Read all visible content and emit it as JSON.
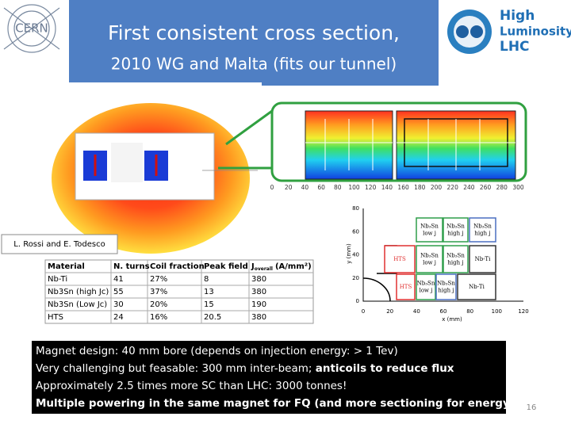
{
  "header": {
    "title": [
      "First consistent cross section,",
      "2010 WG and Malta (fits our tunnel)"
    ],
    "cern_logo": "CERN",
    "hl_logo": [
      "High",
      "Luminosity",
      "LHC"
    ]
  },
  "field_map": {
    "axis_ticks": [
      "0",
      "20",
      "40",
      "60",
      "80",
      "100",
      "120",
      "140",
      "160",
      "180",
      "200",
      "220",
      "240",
      "260",
      "280",
      "300"
    ]
  },
  "credit": "L. Rossi and E. Todesco",
  "table": {
    "header": [
      "Material",
      "N. turns",
      "Coil fraction",
      "Peak field",
      {
        "symbol": "J",
        "subscript": "overall",
        "unit": "(A/mm²)"
      }
    ],
    "rows": [
      [
        "Nb-Ti",
        "41",
        "27%",
        "8",
        "380"
      ],
      [
        "Nb3Sn (high Jc)",
        "55",
        "37%",
        "13",
        "380"
      ],
      [
        "Nb3Sn (Low Jc)",
        "30",
        "20%",
        "15",
        "190"
      ],
      [
        "HTS",
        "24",
        "16%",
        "20.5",
        "380"
      ]
    ]
  },
  "layout": {
    "x_label": "x (mm)",
    "y_label": "y (mm)",
    "xticks": [
      "0",
      "20",
      "40",
      "60",
      "80",
      "100",
      "120"
    ],
    "yticks": [
      "0",
      "20",
      "40",
      "60",
      "80"
    ],
    "blocks": [
      {
        "lines": [
          "Nb₃Sn",
          "low j"
        ]
      },
      {
        "lines": [
          "Nb₃Sn",
          "high j"
        ]
      },
      {
        "lines": [
          "Nb₃Sn",
          "high j"
        ]
      },
      {
        "lines": [
          "HTS"
        ]
      },
      {
        "lines": [
          "Nb₃Sn",
          "low j"
        ]
      },
      {
        "lines": [
          "Nb₃Sn",
          "high j"
        ]
      },
      {
        "lines": [
          "Nb-Ti"
        ]
      },
      {
        "lines": [
          "HTS"
        ]
      },
      {
        "lines": [
          "Nb₃Sn",
          "low j"
        ]
      },
      {
        "lines": [
          "Nb₃Sn",
          "high j"
        ]
      },
      {
        "lines": [
          "Nb-Ti"
        ]
      }
    ]
  },
  "notes": [
    [
      {
        "text": "Magnet design: 40 mm bore (depends on injection energy: > 1 Tev)",
        "bold": false
      }
    ],
    [
      {
        "text": "Very challenging but feasable: 300 mm inter-beam; ",
        "bold": false
      },
      {
        "text": "anticoils to reduce flux",
        "bold": true
      }
    ],
    [
      {
        "text": "Approximately 2.5 times more SC than LHC: 3000 tonnes!",
        "bold": false
      }
    ],
    [
      {
        "text": "Multiple powering in the same magnet for FQ (and more sectioning for energy)",
        "bold": true
      }
    ]
  ],
  "page_number": "16"
}
